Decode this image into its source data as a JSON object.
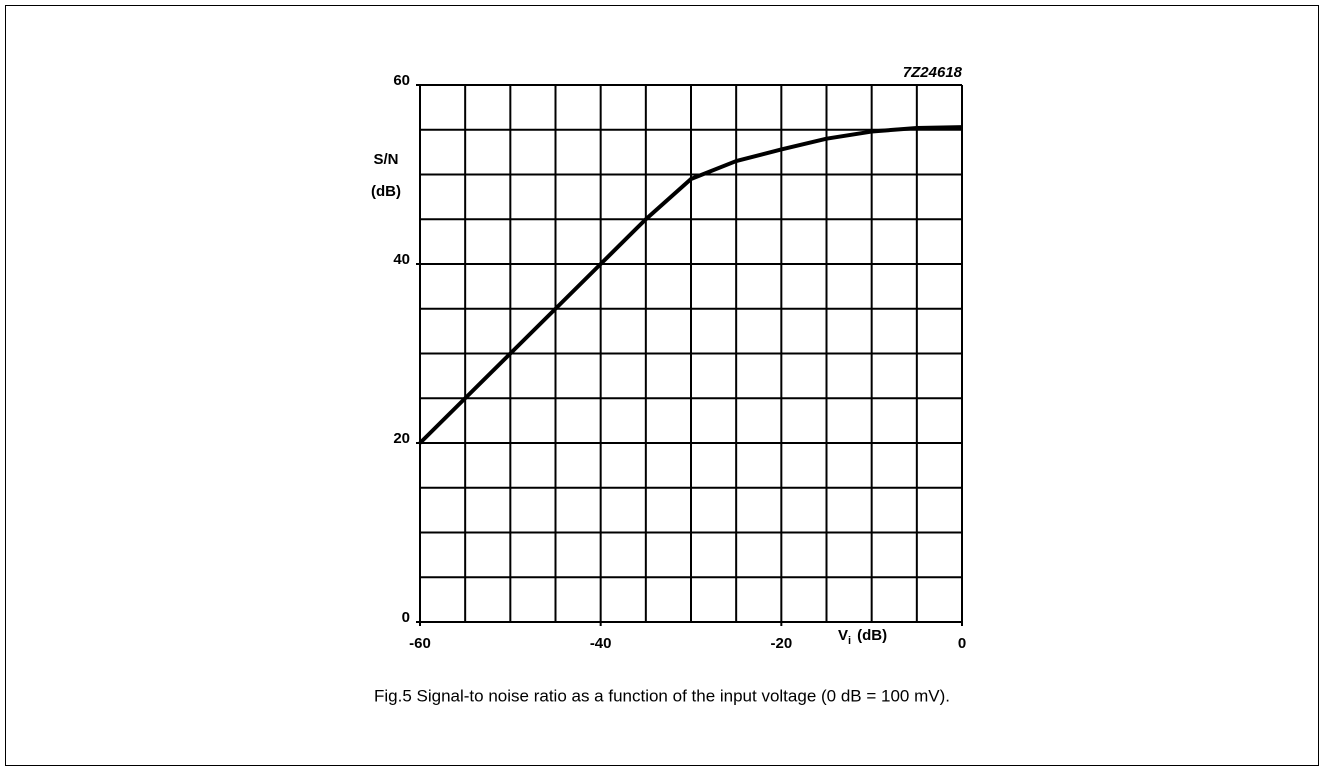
{
  "chart_data": {
    "type": "line",
    "code": "7Z24618",
    "ylabel": [
      "S/N",
      "(dB)"
    ],
    "xlabel": {
      "symbol": "V",
      "subscript": "i",
      "unit": "(dB)"
    },
    "caption": "Fig.5  Signal-to noise ratio as a function of the input voltage (0 dB = 100 mV).",
    "x": [
      -60,
      -55,
      -50,
      -45,
      -40,
      -35,
      -30,
      -25,
      -20,
      -15,
      -10,
      -5,
      0
    ],
    "series": [
      {
        "name": "S/N",
        "color": "#000000",
        "values": [
          20,
          25,
          30,
          35,
          40,
          45,
          49.5,
          51.5,
          52.8,
          54,
          54.8,
          55.2,
          55.3
        ]
      }
    ],
    "xlim": [
      -60,
      0
    ],
    "ylim": [
      0,
      60
    ],
    "xticks": [
      -60,
      -40,
      -20,
      0
    ],
    "yticks": [
      0,
      20,
      40,
      60
    ],
    "xgrid": [
      -60,
      -55,
      -50,
      -45,
      -40,
      -35,
      -30,
      -25,
      -20,
      -15,
      -10,
      -5,
      0
    ],
    "ygrid": [
      0,
      5,
      10,
      15,
      20,
      25,
      30,
      35,
      40,
      45,
      50,
      55,
      60
    ],
    "grid": true
  }
}
